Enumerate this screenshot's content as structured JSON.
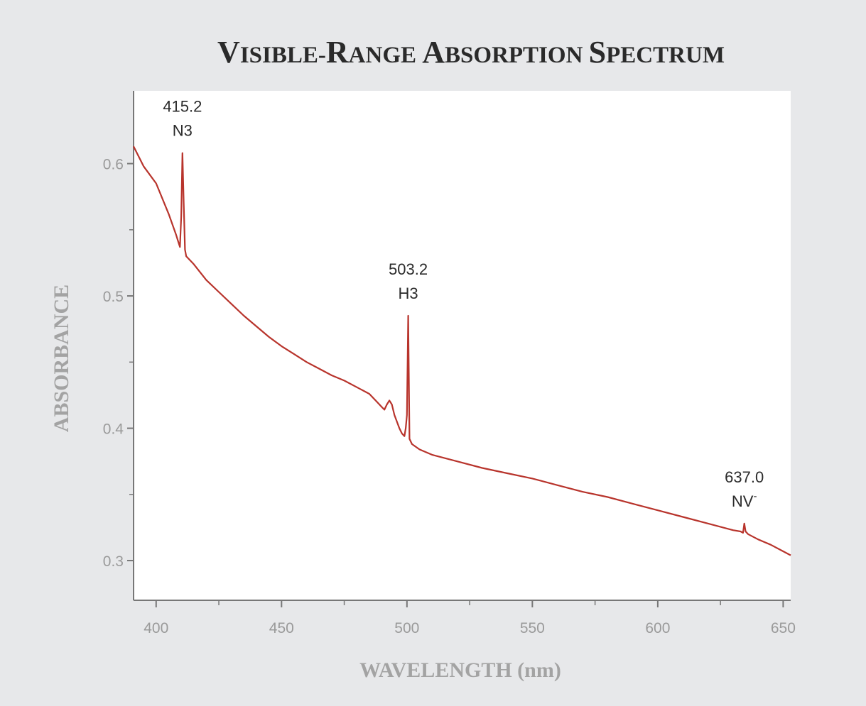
{
  "chart_data": {
    "type": "line",
    "title": "Visible-Range Absorption Spectrum",
    "xlabel": "WAVELENGTH (nm)",
    "ylabel": "ABSORBANCE",
    "xlim": [
      391,
      653
    ],
    "ylim": [
      0.27,
      0.655
    ],
    "xticks": [
      400,
      450,
      500,
      550,
      600,
      650
    ],
    "yticks": [
      0.3,
      0.4,
      0.5,
      0.6
    ],
    "yticks_minor": [
      0.35,
      0.45,
      0.55
    ],
    "grid": false,
    "line_color": "#b8342c",
    "series": [
      {
        "name": "",
        "x": [
          391,
          395,
          400,
          405,
          408,
          409,
          409.5,
          410,
          410.5,
          411,
          411.5,
          412,
          415,
          420,
          425,
          430,
          435,
          440,
          445,
          450,
          455,
          460,
          465,
          470,
          475,
          480,
          485,
          488,
          490,
          491,
          492,
          493,
          494,
          495,
          496,
          497,
          498,
          499,
          499.5,
          500,
          500.5,
          501,
          502,
          505,
          510,
          520,
          530,
          540,
          550,
          560,
          570,
          580,
          590,
          600,
          610,
          620,
          630,
          633,
          634,
          634.5,
          635,
          636,
          640,
          645,
          650,
          653
        ],
        "y": [
          0.613,
          0.598,
          0.585,
          0.562,
          0.546,
          0.54,
          0.537,
          0.56,
          0.608,
          0.57,
          0.535,
          0.53,
          0.524,
          0.512,
          0.503,
          0.494,
          0.485,
          0.477,
          0.469,
          0.462,
          0.456,
          0.45,
          0.445,
          0.44,
          0.436,
          0.431,
          0.426,
          0.42,
          0.416,
          0.414,
          0.418,
          0.421,
          0.418,
          0.41,
          0.405,
          0.4,
          0.396,
          0.394,
          0.4,
          0.41,
          0.485,
          0.392,
          0.388,
          0.384,
          0.38,
          0.375,
          0.37,
          0.366,
          0.362,
          0.357,
          0.352,
          0.348,
          0.343,
          0.338,
          0.333,
          0.328,
          0.323,
          0.322,
          0.321,
          0.328,
          0.322,
          0.32,
          0.316,
          0.312,
          0.307,
          0.304
        ]
      }
    ],
    "annotations": [
      {
        "value": "415.2",
        "label": "N3",
        "x": 410.5,
        "y": 0.608
      },
      {
        "value": "503.2",
        "label": "H3",
        "x": 500.5,
        "y": 0.485
      },
      {
        "value": "637.0",
        "label": "NV",
        "superscript": "-",
        "x": 634.5,
        "y": 0.328
      }
    ]
  }
}
